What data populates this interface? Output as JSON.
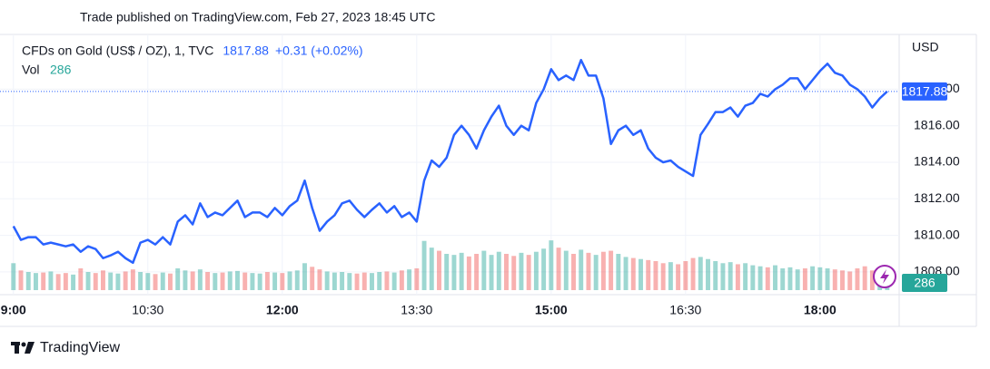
{
  "header": "Trade published on TradingView.com, Feb 27, 2023 18:45 UTC",
  "footer": "TradingView",
  "chart_data": {
    "type": "line",
    "title": "CFDs on Gold (US$ / OZ), 1, TVC",
    "change_label": "+0.31 (+0.02%)",
    "y_axis_label": "USD",
    "x": [
      540,
      545,
      550,
      555,
      560,
      565,
      570,
      575,
      580,
      585,
      590,
      595,
      600,
      605,
      610,
      615,
      620,
      625,
      630,
      635,
      640,
      645,
      650,
      655,
      660,
      665,
      670,
      675,
      680,
      685,
      690,
      695,
      700,
      705,
      710,
      715,
      720,
      725,
      730,
      735,
      740,
      745,
      750,
      755,
      760,
      765,
      770,
      775,
      780,
      785,
      790,
      795,
      800,
      805,
      810,
      815,
      820,
      825,
      830,
      835,
      840,
      845,
      850,
      855,
      860,
      865,
      870,
      875,
      880,
      885,
      890,
      895,
      900,
      905,
      910,
      915,
      920,
      925,
      930,
      935,
      940,
      945,
      950,
      955,
      960,
      965,
      970,
      975,
      980,
      985,
      990,
      995,
      1000,
      1005,
      1010,
      1015,
      1020,
      1025,
      1030,
      1035,
      1040,
      1045,
      1050,
      1055,
      1060,
      1065,
      1070,
      1075,
      1080,
      1085,
      1090,
      1095,
      1100,
      1105,
      1110,
      1115,
      1120,
      1125
    ],
    "xlim": [
      531,
      1133
    ],
    "xticks": [
      {
        "value": 540,
        "label": "9:00"
      },
      {
        "value": 630,
        "label": "10:30"
      },
      {
        "value": 720,
        "label": "12:00"
      },
      {
        "value": 810,
        "label": "13:30"
      },
      {
        "value": 900,
        "label": "15:00"
      },
      {
        "value": 990,
        "label": "16:30"
      },
      {
        "value": 1080,
        "label": "18:00"
      }
    ],
    "ylim": [
      1807,
      1821
    ],
    "yticks": [
      {
        "value": 1808,
        "label": "1808.00"
      },
      {
        "value": 1810,
        "label": "1810.00"
      },
      {
        "value": 1812,
        "label": "1812.00"
      },
      {
        "value": 1814,
        "label": "1814.00"
      },
      {
        "value": 1816,
        "label": "1816.00"
      },
      {
        "value": 1818,
        "label": "1818.00"
      }
    ],
    "y2lim": [
      0,
      1400
    ],
    "grid": true,
    "series": [
      {
        "name": "CFDs on Gold (US$ / OZ), 1, TVC",
        "color": "#2962ff",
        "values": [
          1810.5,
          1809.75,
          1809.9,
          1809.9,
          1809.5,
          1809.6,
          1809.5,
          1809.4,
          1809.5,
          1809.1,
          1809.4,
          1809.25,
          1808.75,
          1808.9,
          1809.1,
          1808.75,
          1808.5,
          1809.6,
          1809.75,
          1809.5,
          1809.9,
          1809.5,
          1810.75,
          1811.1,
          1810.6,
          1811.75,
          1811,
          1811.25,
          1811.1,
          1811.5,
          1811.9,
          1811,
          1811.25,
          1811.25,
          1811,
          1811.5,
          1811.1,
          1811.6,
          1811.9,
          1813,
          1811.5,
          1810.25,
          1810.75,
          1811.1,
          1811.75,
          1811.9,
          1811.4,
          1811,
          1811.4,
          1811.75,
          1811.25,
          1811.6,
          1811,
          1811.25,
          1810.75,
          1813,
          1814.1,
          1813.75,
          1814.25,
          1815.5,
          1816,
          1815.5,
          1814.75,
          1815.75,
          1816.5,
          1817.1,
          1816,
          1815.5,
          1816,
          1815.75,
          1817.25,
          1818,
          1819.1,
          1818.5,
          1818.75,
          1818.5,
          1819.6,
          1818.75,
          1818.75,
          1817.5,
          1815,
          1815.75,
          1816,
          1815.5,
          1815.75,
          1814.75,
          1814.25,
          1814,
          1814.1,
          1813.75,
          1813.5,
          1813.25,
          1815.5,
          1816.1,
          1816.75,
          1816.75,
          1817,
          1816.5,
          1817.1,
          1817.25,
          1817.75,
          1817.6,
          1818,
          1818.25,
          1818.6,
          1818.6,
          1818,
          1818.5,
          1819,
          1819.4,
          1818.9,
          1818.75,
          1818.25,
          1818,
          1817.6,
          1817,
          1817.5,
          1817.88
        ]
      },
      {
        "name": "Vol",
        "axis": "y2",
        "color": "#26a69a",
        "up_color": "#26a69a",
        "down_color": "#ef5350",
        "values": [
          520,
          380,
          350,
          330,
          340,
          360,
          310,
          330,
          300,
          420,
          350,
          330,
          380,
          340,
          320,
          360,
          400,
          350,
          330,
          310,
          340,
          320,
          420,
          380,
          360,
          400,
          350,
          330,
          340,
          360,
          370,
          340,
          330,
          320,
          350,
          340,
          330,
          360,
          380,
          520,
          450,
          400,
          360,
          340,
          350,
          330,
          320,
          340,
          330,
          350,
          360,
          340,
          380,
          400,
          420,
          950,
          820,
          760,
          700,
          680,
          720,
          650,
          700,
          760,
          680,
          740,
          700,
          660,
          720,
          680,
          740,
          800,
          960,
          820,
          760,
          700,
          780,
          720,
          680,
          740,
          760,
          700,
          640,
          620,
          600,
          580,
          560,
          520,
          540,
          500,
          560,
          620,
          640,
          600,
          560,
          520,
          540,
          500,
          520,
          480,
          460,
          440,
          480,
          420,
          440,
          400,
          420,
          460,
          440,
          420,
          400,
          380,
          360,
          420,
          460,
          380,
          340,
          286
        ]
      }
    ]
  }
}
